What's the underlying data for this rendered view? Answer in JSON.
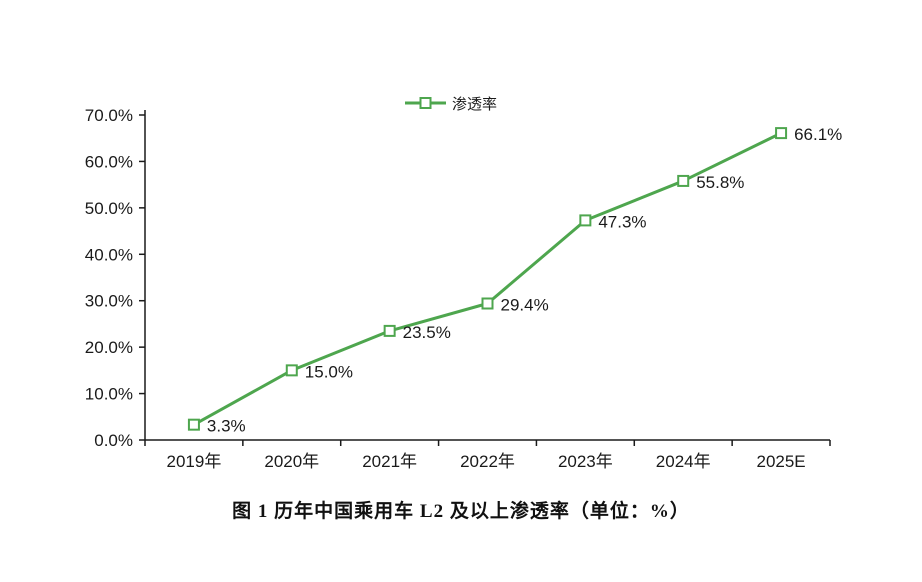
{
  "page": {
    "background": "#ffffff"
  },
  "chart_data": {
    "type": "line",
    "title": "图 1 历年中国乘用车 L2 及以上渗透率（单位：%）",
    "legend": "渗透率",
    "legend_position": "top-center",
    "categories": [
      "2019年",
      "2020年",
      "2021年",
      "2022年",
      "2023年",
      "2024年",
      "2025E"
    ],
    "values": [
      3.3,
      15.0,
      23.5,
      29.4,
      47.3,
      55.8,
      66.1
    ],
    "value_labels": [
      "3.3%",
      "15.0%",
      "23.5%",
      "29.4%",
      "47.3%",
      "55.8%",
      "66.1%"
    ],
    "ylim": [
      0,
      70
    ],
    "ytick_step": 10,
    "ytick_labels": [
      "0.0%",
      "10.0%",
      "20.0%",
      "30.0%",
      "40.0%",
      "50.0%",
      "60.0%",
      "70.0%"
    ],
    "grid": false,
    "colors": {
      "line": "#4EA64E",
      "marker_fill": "#FFFFFF",
      "axis": "#1A1A1A",
      "text": "#1A1A1A"
    }
  }
}
